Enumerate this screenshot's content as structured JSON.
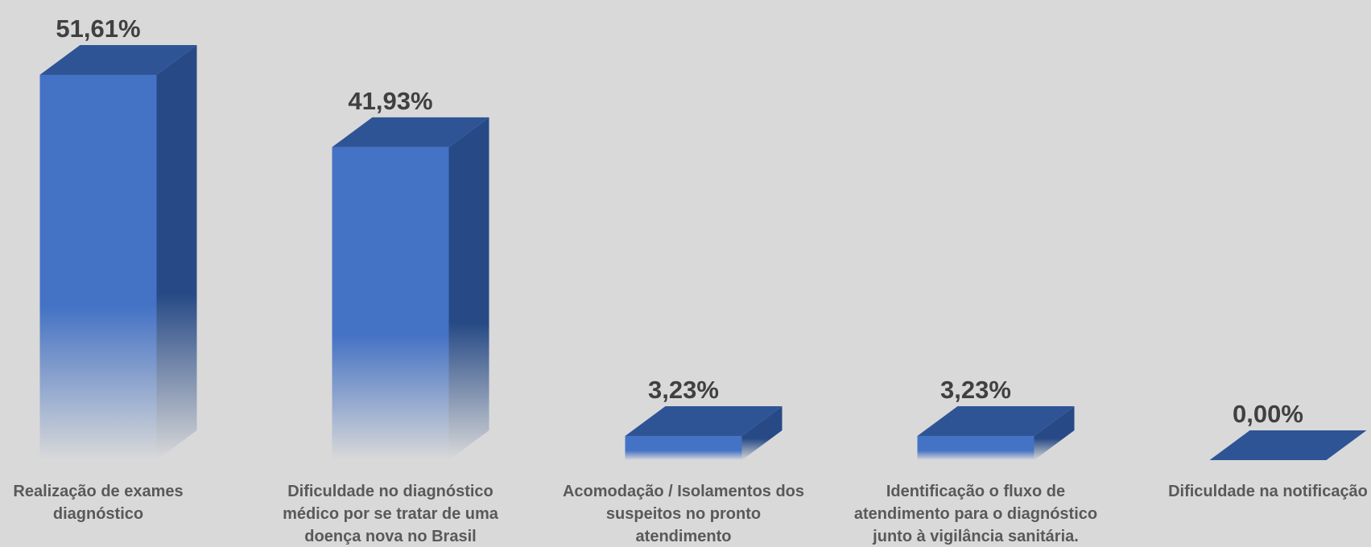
{
  "chart_data": {
    "type": "bar",
    "style": "3d-column-gradient",
    "categories": [
      [
        "Realização de exames",
        "diagnóstico"
      ],
      [
        "Dificuldade no diagnóstico",
        "médico por se tratar de uma",
        "doença nova no Brasil"
      ],
      [
        "Acomodação / Isolamentos dos",
        "suspeitos no pronto",
        "atendimento"
      ],
      [
        "Identificação o fluxo de",
        "atendimento para o diagnóstico",
        "junto à vigilância sanitária."
      ],
      [
        "Dificuldade na notificação"
      ]
    ],
    "values": [
      51.61,
      41.93,
      3.23,
      3.23,
      0.0
    ],
    "data_labels": [
      "51,61%",
      "41,93%",
      "3,23%",
      "3,23%",
      "0,00%"
    ],
    "ylim": [
      0,
      51.61
    ],
    "grid": false,
    "legend": "none",
    "colors": {
      "background": "#d9d9d9",
      "bar_front": "#4472c4",
      "bar_top": "#2f5496",
      "bar_side": "#274a86",
      "label_text": "#404040",
      "category_text": "#595959"
    }
  }
}
